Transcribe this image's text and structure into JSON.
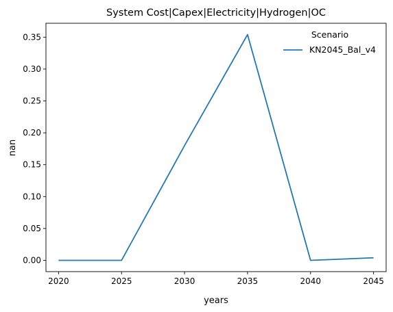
{
  "chart_data": {
    "type": "line",
    "title": "System Cost|Capex|Electricity|Hydrogen|OC",
    "xlabel": "years",
    "ylabel": "nan",
    "x": [
      2020,
      2025,
      2030,
      2035,
      2040,
      2045
    ],
    "xticks": [
      "2020",
      "2025",
      "2030",
      "2035",
      "2040",
      "2045"
    ],
    "yticks": [
      "0.00",
      "0.05",
      "0.10",
      "0.15",
      "0.20",
      "0.25",
      "0.30",
      "0.35"
    ],
    "ytick_values": [
      0,
      0.05,
      0.1,
      0.15,
      0.2,
      0.25,
      0.3,
      0.35
    ],
    "xlim": [
      2019,
      2046
    ],
    "ylim": [
      -0.0177,
      0.3718
    ],
    "grid": false,
    "legend": {
      "title": "Scenario",
      "placement": "top-right"
    },
    "series": [
      {
        "name": "KN2045_Bal_v4",
        "color": "#1f77b4",
        "values": [
          0.0,
          0.0,
          0.18,
          0.354,
          0.0,
          0.004
        ]
      }
    ]
  }
}
